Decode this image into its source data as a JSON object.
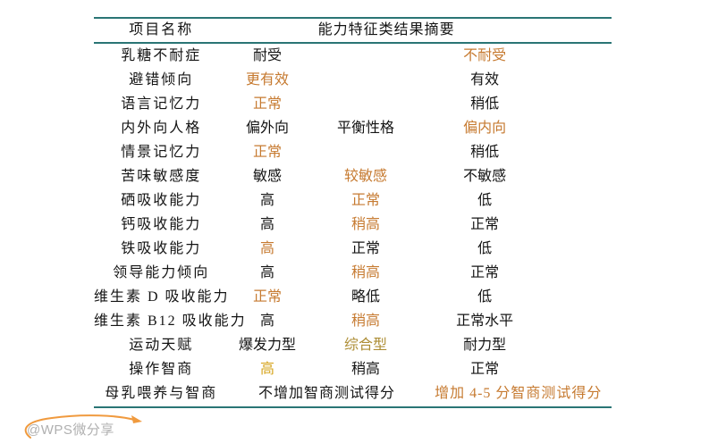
{
  "colors": {
    "teal": "#2a7575",
    "black": "#141414",
    "orange": "#c67a30",
    "gold": "#d6a41e",
    "olive": "#ad8d35",
    "watermark_gray": "#b0b0b0",
    "arc_orange": "#f09a3e"
  },
  "table": {
    "header": {
      "col1": "项目名称",
      "col2": "能力特征类结果摘要"
    },
    "rows": [
      {
        "label": "乳糖不耐症",
        "cells": [
          {
            "text": "耐受",
            "color": "black"
          },
          {
            "text": "",
            "color": "black"
          },
          {
            "text": "不耐受",
            "color": "orange"
          }
        ]
      },
      {
        "label": "避错倾向",
        "cells": [
          {
            "text": "更有效",
            "color": "orange"
          },
          {
            "text": "",
            "color": "black"
          },
          {
            "text": "有效",
            "color": "black"
          }
        ]
      },
      {
        "label": "语言记忆力",
        "cells": [
          {
            "text": "正常",
            "color": "orange"
          },
          {
            "text": "",
            "color": "black"
          },
          {
            "text": "稍低",
            "color": "black"
          }
        ]
      },
      {
        "label": "内外向人格",
        "cells": [
          {
            "text": "偏外向",
            "color": "black"
          },
          {
            "text": "平衡性格",
            "color": "black"
          },
          {
            "text": "偏内向",
            "color": "orange"
          }
        ]
      },
      {
        "label": "情景记忆力",
        "cells": [
          {
            "text": "正常",
            "color": "orange"
          },
          {
            "text": "",
            "color": "black"
          },
          {
            "text": "稍低",
            "color": "black"
          }
        ]
      },
      {
        "label": "苦味敏感度",
        "cells": [
          {
            "text": "敏感",
            "color": "black"
          },
          {
            "text": "较敏感",
            "color": "orange"
          },
          {
            "text": "不敏感",
            "color": "black"
          }
        ]
      },
      {
        "label": "硒吸收能力",
        "cells": [
          {
            "text": "高",
            "color": "black"
          },
          {
            "text": "正常",
            "color": "orange"
          },
          {
            "text": "低",
            "color": "black"
          }
        ]
      },
      {
        "label": "钙吸收能力",
        "cells": [
          {
            "text": "高",
            "color": "black"
          },
          {
            "text": "稍高",
            "color": "orange"
          },
          {
            "text": "正常",
            "color": "black"
          }
        ]
      },
      {
        "label": "铁吸收能力",
        "cells": [
          {
            "text": "高",
            "color": "orange"
          },
          {
            "text": "正常",
            "color": "black"
          },
          {
            "text": "低",
            "color": "black"
          }
        ]
      },
      {
        "label": "领导能力倾向",
        "cells": [
          {
            "text": "高",
            "color": "black"
          },
          {
            "text": "稍高",
            "color": "orange"
          },
          {
            "text": "正常",
            "color": "black"
          }
        ]
      },
      {
        "label": "维生素 D 吸收能力",
        "cells": [
          {
            "text": "正常",
            "color": "orange"
          },
          {
            "text": "略低",
            "color": "black"
          },
          {
            "text": "低",
            "color": "black"
          }
        ]
      },
      {
        "label": "维生素 B12 吸收能力",
        "cells": [
          {
            "text": "高",
            "color": "black"
          },
          {
            "text": "稍高",
            "color": "orange"
          },
          {
            "text": "正常水平",
            "color": "black"
          }
        ]
      },
      {
        "label": "运动天赋",
        "cells": [
          {
            "text": "爆发力型",
            "color": "black"
          },
          {
            "text": "综合型",
            "color": "olive"
          },
          {
            "text": "耐力型",
            "color": "black"
          }
        ]
      },
      {
        "label": "操作智商",
        "cells": [
          {
            "text": "高",
            "color": "gold"
          },
          {
            "text": "稍高",
            "color": "black"
          },
          {
            "text": "正常",
            "color": "black"
          }
        ]
      },
      {
        "label": "母乳喂养与智商",
        "cells": [
          {
            "text": "不增加智商测试得分",
            "color": "black"
          },
          {
            "text": "增加 4-5 分智商测试得分",
            "color": "orange"
          }
        ]
      }
    ]
  },
  "footer": {
    "watermark": "@WPS微分享"
  }
}
